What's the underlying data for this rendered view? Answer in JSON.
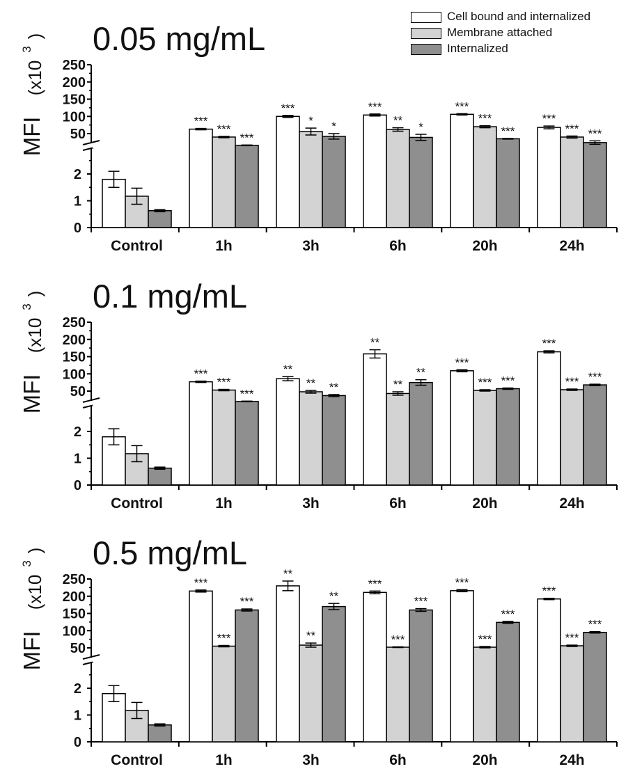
{
  "legend": [
    {
      "label": "Cell bound and internalized",
      "color": "#ffffff"
    },
    {
      "label": "Membrane attached",
      "color": "#d3d3d3"
    },
    {
      "label": "Internalized",
      "color": "#8f8f8f"
    }
  ],
  "chart_data": [
    {
      "type": "bar",
      "title": "0.05 mg/mL",
      "ylabel": "MFI",
      "ylabel_units": "(x10",
      "ylabel_exp": "3",
      "ylabel_close": ")",
      "categories": [
        "Control",
        "1h",
        "3h",
        "6h",
        "20h",
        "24h"
      ],
      "axis_break": true,
      "y_lower": {
        "range": [
          0,
          2.8
        ],
        "ticks": [
          "0",
          "1",
          "2"
        ]
      },
      "y_upper": {
        "range": [
          10,
          250
        ],
        "ticks": [
          "50",
          "100",
          "150",
          "200",
          "250"
        ]
      },
      "series": [
        {
          "name": "Cell bound and internalized",
          "values": [
            1.8,
            63,
            100,
            104,
            106,
            68
          ],
          "errors": [
            0.3,
            2,
            3,
            3,
            2,
            4
          ],
          "significance": [
            "",
            "***",
            "***",
            "***",
            "***",
            "***"
          ]
        },
        {
          "name": "Membrane attached",
          "values": [
            1.17,
            40,
            56,
            62,
            70,
            40
          ],
          "errors": [
            0.3,
            2,
            10,
            5,
            3,
            3
          ],
          "significance": [
            "",
            "***",
            "*",
            "**",
            "***",
            "***"
          ]
        },
        {
          "name": "Internalized",
          "values": [
            0.63,
            16,
            42,
            39,
            35,
            24
          ],
          "errors": [
            0.04,
            1,
            8,
            9,
            1,
            5
          ],
          "significance": [
            "",
            "***",
            "*",
            "*",
            "***",
            "***"
          ]
        }
      ]
    },
    {
      "type": "bar",
      "title": "0.1 mg/mL",
      "ylabel": "MFI",
      "ylabel_units": "(x10",
      "ylabel_exp": "3",
      "ylabel_close": ")",
      "categories": [
        "Control",
        "1h",
        "3h",
        "6h",
        "20h",
        "24h"
      ],
      "axis_break": true,
      "y_lower": {
        "range": [
          0,
          2.8
        ],
        "ticks": [
          "0",
          "1",
          "2"
        ]
      },
      "y_upper": {
        "range": [
          10,
          250
        ],
        "ticks": [
          "50",
          "100",
          "150",
          "200",
          "250"
        ]
      },
      "series": [
        {
          "name": "Cell bound and internalized",
          "values": [
            1.8,
            77,
            86,
            158,
            109,
            164
          ],
          "errors": [
            0.3,
            2,
            6,
            12,
            3,
            3
          ],
          "significance": [
            "",
            "***",
            "**",
            "**",
            "***",
            "***"
          ]
        },
        {
          "name": "Membrane attached",
          "values": [
            1.17,
            53,
            48,
            43,
            52,
            54
          ],
          "errors": [
            0.3,
            2,
            4,
            5,
            2,
            2
          ],
          "significance": [
            "",
            "***",
            "**",
            "**",
            "***",
            "***"
          ]
        },
        {
          "name": "Internalized",
          "values": [
            0.63,
            20,
            37,
            75,
            57,
            68
          ],
          "errors": [
            0.04,
            1,
            3,
            8,
            2,
            2
          ],
          "significance": [
            "",
            "***",
            "**",
            "**",
            "***",
            "***"
          ]
        }
      ]
    },
    {
      "type": "bar",
      "title": "0.5 mg/mL",
      "ylabel": "MFI",
      "ylabel_units": "(x10",
      "ylabel_exp": "3",
      "ylabel_close": ")",
      "categories": [
        "Control",
        "1h",
        "3h",
        "6h",
        "20h",
        "24h"
      ],
      "axis_break": true,
      "y_lower": {
        "range": [
          0,
          2.8
        ],
        "ticks": [
          "0",
          "1",
          "2"
        ]
      },
      "y_upper": {
        "range": [
          10,
          250
        ],
        "ticks": [
          "50",
          "100",
          "150",
          "200",
          "250"
        ]
      },
      "series": [
        {
          "name": "Cell bound and internalized",
          "values": [
            1.8,
            215,
            230,
            211,
            216,
            192
          ],
          "errors": [
            0.3,
            3,
            14,
            4,
            3,
            2
          ],
          "significance": [
            "",
            "***",
            "**",
            "***",
            "***",
            "***"
          ]
        },
        {
          "name": "Membrane attached",
          "values": [
            1.17,
            55,
            58,
            52,
            52,
            56
          ],
          "errors": [
            0.3,
            2,
            6,
            1,
            2,
            2
          ],
          "significance": [
            "",
            "***",
            "**",
            "***",
            "***",
            "***"
          ]
        },
        {
          "name": "Internalized",
          "values": [
            0.63,
            160,
            170,
            160,
            124,
            95
          ],
          "errors": [
            0.04,
            3,
            9,
            4,
            3,
            2
          ],
          "significance": [
            "",
            "***",
            "**",
            "***",
            "***",
            "***"
          ]
        }
      ]
    }
  ]
}
